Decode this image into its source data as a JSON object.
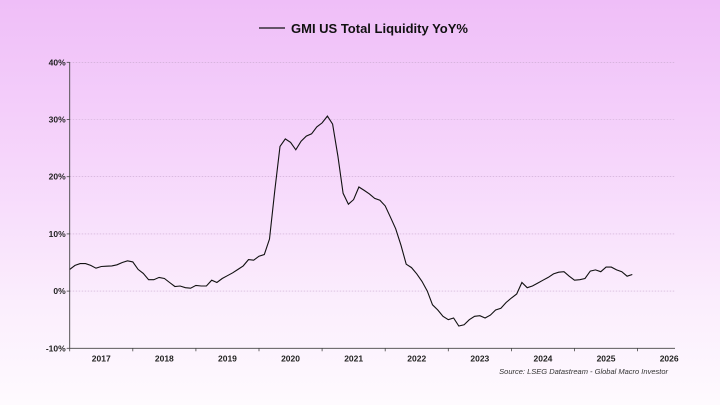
{
  "chart_data": {
    "type": "line",
    "title": "",
    "xlabel": "",
    "ylabel": "",
    "legend": {
      "position": "top-center",
      "entries": [
        "GMI US Total Liquidity YoY%"
      ]
    },
    "source": "Source: LSEG Datastream - Global Macro Investor",
    "ylim": [
      -10,
      40
    ],
    "y_ticks": [
      40,
      30,
      20,
      10,
      0,
      -10
    ],
    "y_tick_labels": [
      "40%",
      "30%",
      "20%",
      "10%",
      "0%",
      "-10%"
    ],
    "x_tick_labels": [
      "2017",
      "2018",
      "2019",
      "2020",
      "2021",
      "2022",
      "2023",
      "2024",
      "2025",
      "2026"
    ],
    "grid": "horizontal dotted",
    "line_color": "#111111",
    "series": [
      {
        "name": "GMI US Total Liquidity YoY%",
        "x": [
          "2017-01",
          "2017-02",
          "2017-03",
          "2017-04",
          "2017-05",
          "2017-06",
          "2017-07",
          "2017-08",
          "2017-09",
          "2017-10",
          "2017-11",
          "2017-12",
          "2018-01",
          "2018-02",
          "2018-03",
          "2018-04",
          "2018-05",
          "2018-06",
          "2018-07",
          "2018-08",
          "2018-09",
          "2018-10",
          "2018-11",
          "2018-12",
          "2019-01",
          "2019-02",
          "2019-03",
          "2019-04",
          "2019-05",
          "2019-06",
          "2019-07",
          "2019-08",
          "2019-09",
          "2019-10",
          "2019-11",
          "2019-12",
          "2020-01",
          "2020-02",
          "2020-03",
          "2020-04",
          "2020-05",
          "2020-06",
          "2020-07",
          "2020-08",
          "2020-09",
          "2020-10",
          "2020-11",
          "2020-12",
          "2021-01",
          "2021-02",
          "2021-03",
          "2021-04",
          "2021-05",
          "2021-06",
          "2021-07",
          "2021-08",
          "2021-09",
          "2021-10",
          "2021-11",
          "2021-12",
          "2022-01",
          "2022-02",
          "2022-03",
          "2022-04",
          "2022-05",
          "2022-06",
          "2022-07",
          "2022-08",
          "2022-09",
          "2022-10",
          "2022-11",
          "2022-12",
          "2023-01",
          "2023-02",
          "2023-03",
          "2023-04",
          "2023-05",
          "2023-06",
          "2023-07",
          "2023-08",
          "2023-09",
          "2023-10",
          "2023-11",
          "2023-12",
          "2024-01",
          "2024-02",
          "2024-03",
          "2024-04",
          "2024-05",
          "2024-06",
          "2024-07",
          "2024-08",
          "2024-09",
          "2024-10",
          "2024-11",
          "2024-12",
          "2025-01",
          "2025-02",
          "2025-03",
          "2025-04",
          "2025-05",
          "2025-06",
          "2025-07",
          "2025-08",
          "2025-09",
          "2025-10",
          "2025-11",
          "2025-12"
        ],
        "values": [
          3.8,
          4.5,
          4.8,
          4.8,
          4.5,
          4.0,
          4.3,
          4.35,
          4.4,
          4.6,
          5.0,
          5.3,
          5.1,
          3.8,
          3.1,
          2.0,
          2.0,
          2.4,
          2.2,
          1.5,
          0.8,
          0.9,
          0.6,
          0.5,
          1.0,
          0.9,
          0.9,
          1.9,
          1.5,
          2.2,
          2.7,
          3.2,
          3.8,
          4.4,
          5.5,
          5.4,
          6.1,
          6.4,
          9.1,
          17.6,
          25.3,
          26.6,
          26.0,
          24.7,
          26.2,
          27.1,
          27.5,
          28.7,
          29.4,
          30.6,
          29.2,
          23.6,
          17.1,
          15.2,
          16.0,
          18.2,
          17.6,
          17.0,
          16.2,
          15.9,
          14.9,
          12.9,
          10.9,
          8.0,
          4.7,
          4.1,
          3.0,
          1.7,
          0.0,
          -2.4,
          -3.3,
          -4.4,
          -5.0,
          -4.7,
          -6.1,
          -5.9,
          -5.0,
          -4.4,
          -4.3,
          -4.7,
          -4.2,
          -3.3,
          -3.0,
          -2.0,
          -1.2,
          -0.5,
          1.5,
          0.6,
          0.9,
          1.4,
          1.9,
          2.4,
          3.0,
          3.3,
          3.4,
          2.6,
          1.9,
          2.0,
          2.2,
          3.5,
          3.7,
          3.4,
          4.2,
          4.2,
          3.7,
          3.4,
          2.6,
          2.9
        ]
      }
    ]
  }
}
